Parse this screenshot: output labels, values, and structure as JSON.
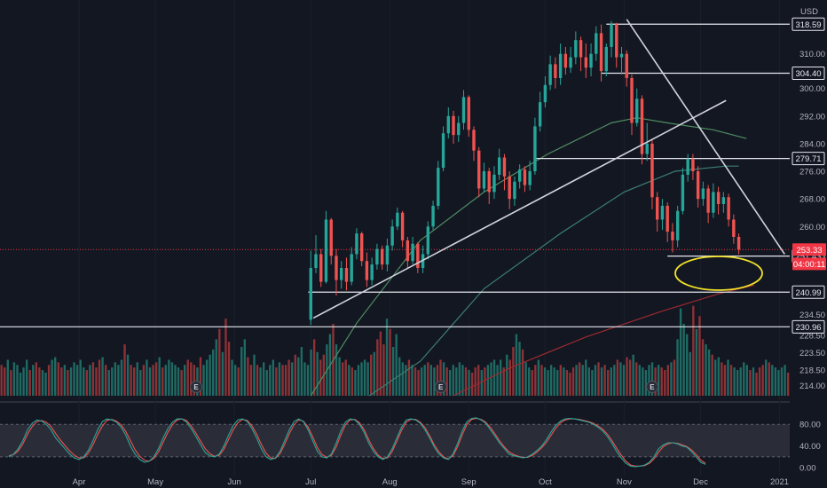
{
  "currency": "USD",
  "chart_data": {
    "type": "candlestick",
    "price_axis": {
      "ylim": [
        211,
        322
      ],
      "ticks": [
        214.0,
        218.5,
        223.5,
        228.5,
        234.5,
        240.99,
        251.43,
        253.33,
        260.0,
        268.0,
        276.0,
        279.71,
        284.0,
        292.0,
        300.0,
        304.4,
        310.0,
        318.59
      ]
    },
    "x_axis": {
      "range_days": [
        0,
        310
      ],
      "labels": [
        {
          "text": "Apr",
          "day": 31
        },
        {
          "text": "May",
          "day": 61
        },
        {
          "text": "Jun",
          "day": 92
        },
        {
          "text": "Jul",
          "day": 122
        },
        {
          "text": "Aug",
          "day": 153
        },
        {
          "text": "Sep",
          "day": 184
        },
        {
          "text": "Oct",
          "day": 214
        },
        {
          "text": "Nov",
          "day": 245
        },
        {
          "text": "Dec",
          "day": 275
        },
        {
          "text": "2021",
          "day": 306
        }
      ]
    },
    "horizontal_levels": [
      {
        "value": 318.59,
        "label": "318.59",
        "from_day": 238
      },
      {
        "value": 304.4,
        "label": "304.40",
        "from_day": 236
      },
      {
        "value": 279.71,
        "label": "279.71",
        "from_day": 210
      },
      {
        "value": 251.43,
        "label": "251.43",
        "from_day": 262
      },
      {
        "value": 240.99,
        "label": "240.99",
        "from_day": 121
      },
      {
        "value": 230.96,
        "label": "230.96",
        "from_day": 0
      }
    ],
    "price_markers": [
      {
        "value": 253.33,
        "label": "253.33",
        "color": "#f23645"
      },
      {
        "value": 249.2,
        "label": "04:00:11",
        "color": "#f23645"
      }
    ],
    "trend_lines": [
      {
        "from": [
          123,
          233.5
        ],
        "to": [
          285,
          296.5
        ],
        "color": "#d1d4dc"
      },
      {
        "from": [
          246,
          320
        ],
        "to": [
          308,
          252
        ],
        "color": "#d1d4dc"
      }
    ],
    "earnings_markers": [
      {
        "day": 77,
        "label": "E"
      },
      {
        "day": 173,
        "label": "E"
      },
      {
        "day": 256,
        "label": "E"
      }
    ],
    "moving_averages": [
      {
        "color": "#9b2a30",
        "points": [
          [
            178,
            211
          ],
          [
            200,
            219
          ],
          [
            230,
            228
          ],
          [
            260,
            235.5
          ],
          [
            282,
            240.5
          ],
          [
            296,
            243
          ]
        ]
      },
      {
        "color": "#3c7f6f",
        "points": [
          [
            145,
            211
          ],
          [
            165,
            221
          ],
          [
            190,
            242
          ],
          [
            220,
            258
          ],
          [
            245,
            270
          ],
          [
            265,
            276
          ],
          [
            285,
            277.5
          ],
          [
            290,
            277.5
          ]
        ]
      },
      {
        "color": "#4f8d62",
        "points": [
          [
            122,
            211
          ],
          [
            140,
            232
          ],
          [
            165,
            256
          ],
          [
            190,
            270
          ],
          [
            215,
            281
          ],
          [
            240,
            290
          ],
          [
            250,
            291.5
          ],
          [
            262,
            290
          ],
          [
            280,
            288
          ],
          [
            293,
            285.5
          ]
        ]
      }
    ],
    "candles": [
      [
        122,
        233.0,
        248.0,
        253.0,
        231.5
      ],
      [
        124,
        248.0,
        252.0,
        257.5,
        246.5
      ],
      [
        126,
        252.0,
        244.0,
        253.5,
        242.5
      ],
      [
        128,
        244.0,
        262.0,
        264.5,
        243.5
      ],
      [
        130,
        262.0,
        251.5,
        262.5,
        249.0
      ],
      [
        132,
        251.5,
        244.5,
        253.5,
        240.0
      ],
      [
        134,
        244.5,
        248.0,
        250.0,
        242.0
      ],
      [
        136,
        248.0,
        244.0,
        251.0,
        241.5
      ],
      [
        138,
        244.0,
        252.0,
        254.0,
        243.0
      ],
      [
        140,
        252.0,
        258.0,
        259.5,
        250.5
      ],
      [
        142,
        258.0,
        250.0,
        258.5,
        248.5
      ],
      [
        144,
        250.0,
        244.5,
        252.5,
        242.5
      ],
      [
        146,
        244.5,
        249.0,
        251.0,
        243.0
      ],
      [
        148,
        249.0,
        253.5,
        255.0,
        247.5
      ],
      [
        150,
        253.5,
        249.0,
        254.5,
        247.5
      ],
      [
        152,
        249.0,
        254.5,
        256.5,
        247.0
      ],
      [
        154,
        254.5,
        260.0,
        262.0,
        253.0
      ],
      [
        156,
        260.0,
        264.0,
        265.5,
        259.0
      ],
      [
        158,
        264.0,
        256.0,
        264.5,
        254.0
      ],
      [
        160,
        256.0,
        250.0,
        257.0,
        248.0
      ],
      [
        162,
        250.0,
        255.0,
        257.0,
        249.0
      ],
      [
        164,
        255.0,
        248.0,
        255.5,
        246.5
      ],
      [
        166,
        248.0,
        252.0,
        254.5,
        246.5
      ],
      [
        168,
        252.0,
        260.0,
        261.5,
        250.5
      ],
      [
        170,
        260.0,
        266.0,
        267.5,
        259.0
      ],
      [
        172,
        266.0,
        277.0,
        279.0,
        265.0
      ],
      [
        174,
        277.0,
        287.0,
        289.0,
        276.0
      ],
      [
        176,
        287.0,
        292.0,
        294.5,
        285.5
      ],
      [
        178,
        292.0,
        286.5,
        293.5,
        284.0
      ],
      [
        180,
        286.5,
        290.0,
        292.0,
        284.5
      ],
      [
        182,
        290.0,
        297.5,
        299.5,
        288.0
      ],
      [
        184,
        297.5,
        288.0,
        298.0,
        286.0
      ],
      [
        186,
        288.0,
        282.0,
        289.0,
        279.0
      ],
      [
        188,
        282.0,
        271.0,
        283.0,
        268.5
      ],
      [
        190,
        271.0,
        276.0,
        278.5,
        270.0
      ],
      [
        192,
        276.0,
        270.0,
        277.0,
        266.5
      ],
      [
        194,
        270.0,
        275.0,
        277.5,
        268.0
      ],
      [
        196,
        275.0,
        280.0,
        282.5,
        273.5
      ],
      [
        198,
        280.0,
        274.5,
        281.0,
        270.5
      ],
      [
        200,
        274.5,
        268.0,
        276.0,
        265.0
      ],
      [
        202,
        268.0,
        273.0,
        274.5,
        266.0
      ],
      [
        204,
        273.0,
        276.5,
        278.0,
        271.0
      ],
      [
        206,
        276.5,
        272.0,
        277.5,
        270.0
      ],
      [
        208,
        272.0,
        276.0,
        279.0,
        270.5
      ],
      [
        210,
        276.0,
        289.0,
        291.5,
        275.0
      ],
      [
        212,
        289.0,
        296.0,
        299.0,
        287.5
      ],
      [
        214,
        296.0,
        301.0,
        303.5,
        294.5
      ],
      [
        216,
        301.0,
        307.0,
        309.5,
        299.5
      ],
      [
        218,
        307.0,
        303.0,
        309.0,
        300.0
      ],
      [
        220,
        303.0,
        310.0,
        313.0,
        301.0
      ],
      [
        222,
        310.0,
        306.0,
        312.0,
        304.0
      ],
      [
        224,
        306.0,
        309.0,
        312.0,
        304.5
      ],
      [
        226,
        309.0,
        314.0,
        316.5,
        307.0
      ],
      [
        228,
        314.0,
        309.0,
        315.0,
        305.0
      ],
      [
        230,
        309.0,
        306.0,
        313.0,
        303.0
      ],
      [
        232,
        306.0,
        310.0,
        313.0,
        303.5
      ],
      [
        234,
        310.0,
        316.0,
        318.0,
        308.0
      ],
      [
        236,
        316.0,
        305.0,
        318.5,
        302.0
      ],
      [
        238,
        305.0,
        312.0,
        313.0,
        303.5
      ],
      [
        240,
        312.0,
        318.59,
        319.5,
        309.0
      ],
      [
        242,
        318.59,
        309.0,
        319.0,
        306.0
      ],
      [
        244,
        309.0,
        310.0,
        312.0,
        304.0
      ],
      [
        246,
        310.0,
        303.0,
        311.0,
        300.5
      ],
      [
        248,
        303.0,
        290.0,
        304.0,
        286.5
      ],
      [
        250,
        290.0,
        297.0,
        300.0,
        289.0
      ],
      [
        252,
        297.0,
        281.0,
        298.0,
        278.0
      ],
      [
        254,
        281.0,
        284.0,
        290.0,
        279.0
      ],
      [
        256,
        284.0,
        268.5,
        285.0,
        265.0
      ],
      [
        258,
        268.5,
        262.0,
        270.0,
        258.5
      ],
      [
        260,
        262.0,
        266.0,
        268.0,
        259.0
      ],
      [
        262,
        266.0,
        258.5,
        267.0,
        255.5
      ],
      [
        264,
        258.5,
        256.0,
        261.0,
        252.5
      ],
      [
        266,
        256.0,
        264.5,
        266.0,
        254.0
      ],
      [
        268,
        264.5,
        275.0,
        277.0,
        263.5
      ],
      [
        270,
        275.0,
        279.5,
        281.0,
        273.0
      ],
      [
        272,
        279.5,
        276.0,
        281.0,
        273.5
      ],
      [
        274,
        276.0,
        268.0,
        277.5,
        265.5
      ],
      [
        276,
        268.0,
        271.0,
        273.0,
        266.0
      ],
      [
        278,
        271.0,
        264.0,
        272.0,
        261.0
      ],
      [
        280,
        264.0,
        270.0,
        272.5,
        262.5
      ],
      [
        282,
        270.0,
        266.5,
        271.5,
        263.5
      ],
      [
        284,
        266.5,
        268.5,
        270.0,
        264.0
      ],
      [
        286,
        268.5,
        262.0,
        269.5,
        260.0
      ],
      [
        288,
        262.0,
        257.0,
        263.5,
        255.0
      ],
      [
        290,
        257.0,
        253.33,
        258.0,
        252.0
      ]
    ],
    "volume_series": [
      12,
      11,
      14,
      10,
      13,
      12,
      9,
      11,
      14,
      10,
      12,
      13,
      11,
      10,
      9,
      12,
      14,
      15,
      13,
      11,
      12,
      10,
      11,
      13,
      12,
      14,
      11,
      10,
      12,
      13,
      11,
      14,
      15,
      12,
      10,
      11,
      13,
      12,
      14,
      20,
      16,
      12,
      11,
      13,
      10,
      12,
      14,
      11,
      12,
      13,
      15,
      11,
      12,
      14,
      13,
      12,
      11,
      10,
      12,
      14,
      13,
      12,
      11,
      15,
      12,
      14,
      16,
      18,
      22,
      26,
      17,
      30,
      21,
      14,
      12,
      11,
      19,
      22,
      15,
      12,
      16,
      12,
      11,
      13,
      10,
      12,
      14,
      11,
      13,
      12,
      12,
      14,
      13,
      16,
      15,
      19,
      13,
      12,
      18,
      22,
      17,
      14,
      16,
      20,
      24,
      28,
      20,
      15,
      13,
      14,
      12,
      11,
      10,
      12,
      13,
      14,
      13,
      16,
      17,
      22,
      25,
      20,
      30,
      26,
      19,
      24,
      15,
      13,
      12,
      14,
      12,
      11,
      10,
      11,
      12,
      13,
      12,
      11,
      12,
      14,
      13,
      11,
      10,
      12,
      11,
      13,
      12,
      11,
      10,
      9,
      11,
      12,
      10,
      11,
      12,
      13,
      14,
      12,
      14,
      11,
      16,
      14,
      19,
      24,
      21,
      18,
      13,
      11,
      10,
      12,
      14,
      12,
      11,
      10,
      12,
      11,
      10,
      12,
      11,
      10,
      9,
      11,
      12,
      13,
      12,
      14,
      11,
      10,
      12,
      13,
      11,
      12,
      10,
      11,
      12,
      14,
      13,
      12,
      15,
      14,
      16,
      13,
      12,
      11,
      10,
      12,
      13,
      11,
      12,
      11,
      10,
      12,
      13,
      14,
      22,
      34,
      28,
      24,
      17,
      35,
      26,
      31,
      22,
      20,
      18,
      16,
      14,
      15,
      13,
      12,
      14,
      12,
      11,
      10,
      11,
      13,
      12,
      10,
      11,
      9,
      11,
      12,
      14,
      13,
      12,
      11,
      10,
      11,
      12,
      9
    ],
    "oscillator": {
      "ylim": [
        -8,
        100
      ],
      "ticks": [
        0.0,
        40.0,
        80.0
      ],
      "band": [
        20,
        80
      ],
      "k": [
        20,
        25,
        35,
        50,
        70,
        82,
        88,
        86,
        80,
        70,
        55,
        45,
        35,
        25,
        18,
        15,
        20,
        32,
        50,
        70,
        85,
        90,
        88,
        84,
        75,
        60,
        40,
        25,
        15,
        10,
        12,
        20,
        35,
        55,
        72,
        84,
        90,
        90,
        84,
        72,
        58,
        42,
        28,
        22,
        20,
        25,
        40,
        60,
        78,
        88,
        90,
        85,
        72,
        55,
        35,
        20,
        15,
        18,
        30,
        50,
        70,
        85,
        90,
        85,
        70,
        50,
        30,
        20,
        18,
        25,
        45,
        68,
        84,
        90,
        88,
        80,
        65,
        45,
        30,
        20,
        15,
        20,
        35,
        55,
        75,
        88,
        90,
        88,
        82,
        70,
        55,
        38,
        25,
        18,
        15,
        25,
        45,
        68,
        85,
        91,
        92,
        88,
        82,
        70,
        58,
        45,
        35,
        25,
        22,
        20,
        18,
        20,
        25,
        32,
        40,
        52,
        66,
        78,
        86,
        90,
        91,
        90,
        88,
        86,
        84,
        80,
        75,
        68,
        58,
        45,
        30,
        18,
        8,
        3,
        2,
        3,
        5,
        10,
        20,
        35,
        42,
        46,
        46,
        44,
        40,
        38,
        30,
        20,
        10,
        6
      ],
      "d": [
        22,
        24,
        31,
        44,
        62,
        76,
        85,
        87,
        84,
        76,
        63,
        51,
        41,
        31,
        23,
        18,
        18,
        27,
        42,
        61,
        77,
        87,
        89,
        86,
        79,
        67,
        50,
        33,
        21,
        14,
        12,
        17,
        29,
        47,
        65,
        79,
        88,
        90,
        87,
        77,
        64,
        49,
        35,
        26,
        21,
        23,
        34,
        52,
        70,
        83,
        89,
        87,
        77,
        62,
        43,
        27,
        18,
        17,
        26,
        43,
        63,
        79,
        88,
        86,
        75,
        57,
        37,
        24,
        19,
        23,
        38,
        60,
        79,
        88,
        89,
        83,
        70,
        51,
        35,
        23,
        17,
        18,
        30,
        49,
        69,
        84,
        89,
        89,
        84,
        74,
        59,
        42,
        29,
        20,
        16,
        22,
        39,
        61,
        80,
        89,
        91,
        89,
        84,
        74,
        62,
        49,
        38,
        29,
        24,
        21,
        19,
        19,
        23,
        29,
        37,
        47,
        60,
        73,
        83,
        88,
        90,
        90,
        89,
        87,
        85,
        82,
        77,
        71,
        62,
        50,
        36,
        23,
        12,
        5,
        3,
        3,
        4,
        8,
        16,
        29,
        39,
        44,
        46,
        45,
        42,
        39,
        33,
        24,
        14,
        8
      ]
    }
  }
}
